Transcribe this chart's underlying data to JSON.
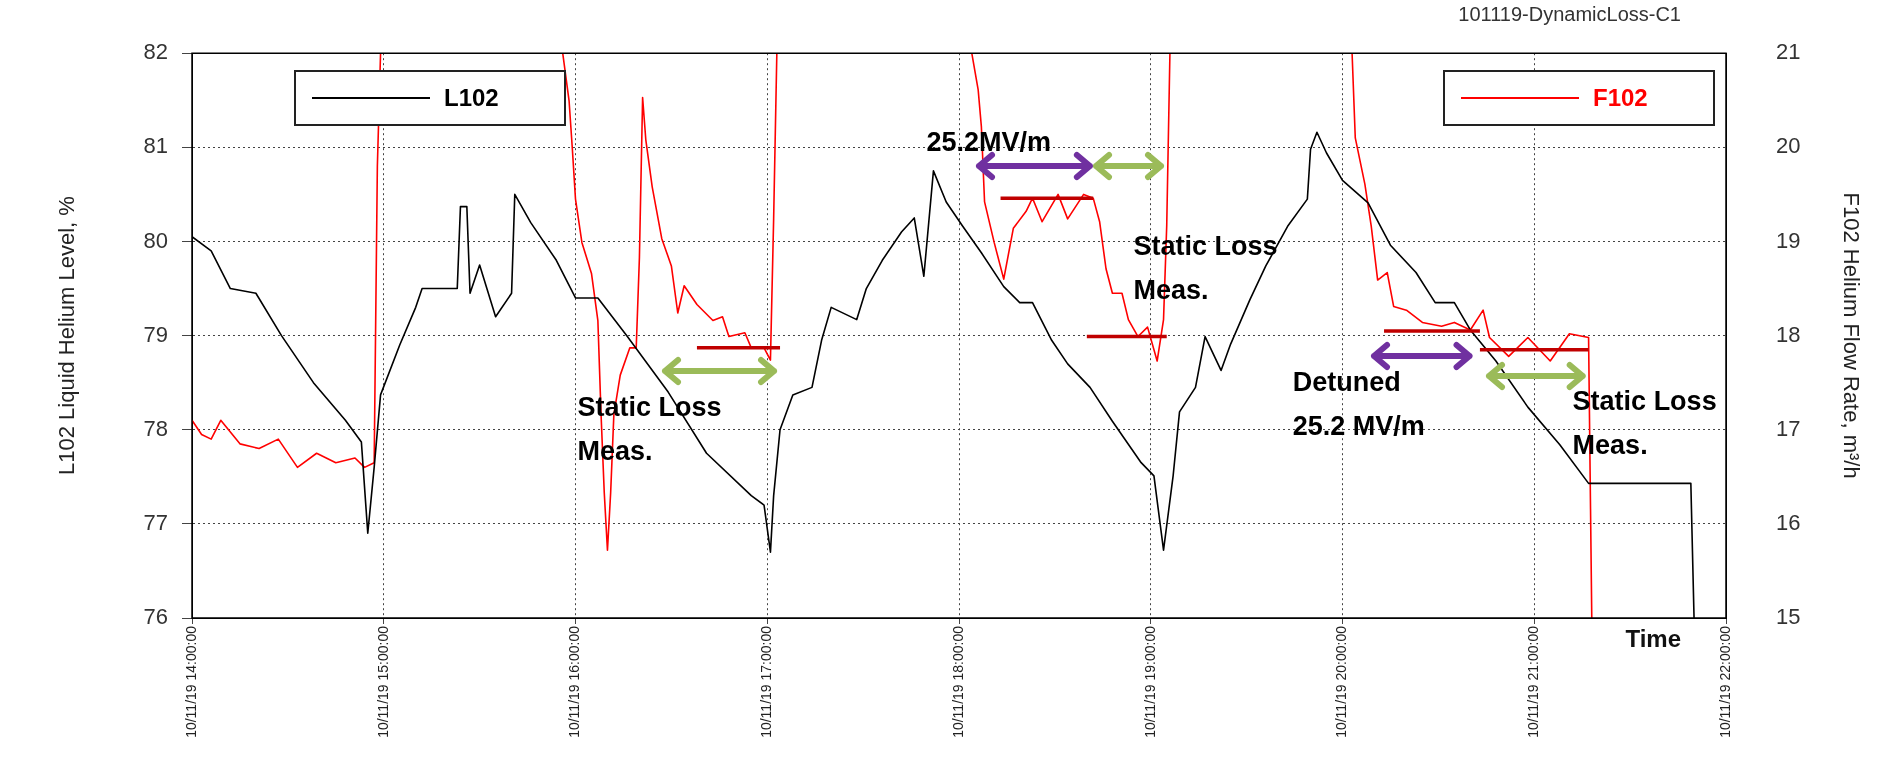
{
  "chart_data": {
    "type": "line",
    "title": "101119-DynamicLoss-C1",
    "xlabel": "Time",
    "ylabel": "L102 Liquid Helium Level, %",
    "y2label": "F102 Helium Flow Rate, m³/h",
    "xlim": [
      "--10-11T14:00",
      "--10-11T22:00"
    ],
    "xticks": [
      {
        "value": "--10-11T14:00",
        "label": "10/11/19 14:00:00"
      },
      {
        "value": "--10-11T15:00",
        "label": "10/11/19 15:00:00"
      },
      {
        "value": "--10-11T16:00",
        "label": "10/11/19 16:00:00"
      },
      {
        "value": "--10-11T17:00",
        "label": "10/11/19 17:00:00"
      },
      {
        "value": "--10-11T18:00",
        "label": "10/11/19 18:00:00"
      },
      {
        "value": "--10-11T19:00",
        "label": "10/11/19 19:00:00"
      },
      {
        "value": "--10-11T20:00",
        "label": "10/11/19 20:00:00"
      },
      {
        "value": "--10-11T21:00",
        "label": "10/11/19 21:00:00"
      },
      {
        "value": "--10-11T22:00",
        "label": "10/11/19 22:00:00"
      }
    ],
    "ylim": [
      76,
      82
    ],
    "yticks": [
      76,
      77,
      78,
      79,
      80,
      81,
      82
    ],
    "y2lim": [
      15,
      21
    ],
    "y2ticks": [
      15,
      16,
      17,
      18,
      19,
      20,
      21
    ],
    "grid": true,
    "legend": "top",
    "line_style": "solid",
    "marker": "none",
    "series": [
      {
        "name": "L102",
        "color": "#000000",
        "x": [
          "--10-11T14:00",
          "--10-11T14:06",
          "--10-11T14:12",
          "--10-11T14:20",
          "--10-11T14:28",
          "--10-11T14:38",
          "--10-11T14:48",
          "--10-11T14:53",
          "--10-11T14:55",
          "--10-11T14:57",
          "--10-11T14:59",
          "--10-11T15:05",
          "--10-11T15:10",
          "--10-11T15:12",
          "--10-11T15:23",
          "--10-11T15:24",
          "--10-11T15:26",
          "--10-11T15:27",
          "--10-11T15:30",
          "--10-11T15:35",
          "--10-11T15:40",
          "--10-11T15:41",
          "--10-11T15:46",
          "--10-11T15:54",
          "--10-11T16:00",
          "--10-11T16:07",
          "--10-11T16:16",
          "--10-11T16:29",
          "--10-11T16:41",
          "--10-11T16:55",
          "--10-11T16:59",
          "--10-11T17:01",
          "--10-11T17:02",
          "--10-11T17:04",
          "--10-11T17:08",
          "--10-11T17:14",
          "--10-11T17:17",
          "--10-11T17:20",
          "--10-11T17:28",
          "--10-11T17:31",
          "--10-11T17:36",
          "--10-11T17:42",
          "--10-11T17:46",
          "--10-11T17:49",
          "--10-11T17:52",
          "--10-11T17:56",
          "--10-11T18:01",
          "--10-11T18:07",
          "--10-11T18:14",
          "--10-11T18:19",
          "--10-11T18:23",
          "--10-11T18:29",
          "--10-11T18:34",
          "--10-11T18:41",
          "--10-11T18:48",
          "--10-11T18:57",
          "--10-11T19:01",
          "--10-11T19:04",
          "--10-11T19:07",
          "--10-11T19:09",
          "--10-11T19:14",
          "--10-11T19:17",
          "--10-11T19:22",
          "--10-11T19:25",
          "--10-11T19:31",
          "--10-11T19:36",
          "--10-11T19:43",
          "--10-11T19:49",
          "--10-11T19:50",
          "--10-11T19:52",
          "--10-11T19:55",
          "--10-11T20:00",
          "--10-11T20:08",
          "--10-11T20:15",
          "--10-11T20:23",
          "--10-11T20:29",
          "--10-11T20:35",
          "--10-11T20:40",
          "--10-11T20:48",
          "--10-11T20:58",
          "--10-11T21:08",
          "--10-11T21:17",
          "--10-11T21:49",
          "--10-11T21:50"
        ],
        "values": [
          80.05,
          79.9,
          79.5,
          79.45,
          79.0,
          78.5,
          78.1,
          77.87,
          76.9,
          77.6,
          78.37,
          78.9,
          79.3,
          79.5,
          79.5,
          80.37,
          80.37,
          79.45,
          79.75,
          79.2,
          79.45,
          80.5,
          80.2,
          79.8,
          79.4,
          79.4,
          79.0,
          78.4,
          77.75,
          77.3,
          77.2,
          76.7,
          77.3,
          78.0,
          78.37,
          78.45,
          78.95,
          79.3,
          79.17,
          79.5,
          79.8,
          80.1,
          80.25,
          79.63,
          80.75,
          80.42,
          80.17,
          79.88,
          79.52,
          79.35,
          79.35,
          78.95,
          78.7,
          78.45,
          78.09,
          77.65,
          77.51,
          76.72,
          77.51,
          78.19,
          78.45,
          78.99,
          78.63,
          78.91,
          79.38,
          79.74,
          80.17,
          80.45,
          80.98,
          81.16,
          80.94,
          80.65,
          80.41,
          79.96,
          79.67,
          79.35,
          79.35,
          79.06,
          78.73,
          78.24,
          77.84,
          77.43,
          77.43,
          76.0
        ]
      },
      {
        "name": "F102",
        "color": "#ff0000",
        "axis": "y2",
        "x": [
          "--10-11T14:00",
          "--10-11T14:03",
          "--10-11T14:06",
          "--10-11T14:09",
          "--10-11T14:15",
          "--10-11T14:21",
          "--10-11T14:27",
          "--10-11T14:33",
          "--10-11T14:39",
          "--10-11T14:45",
          "--10-11T14:51",
          "--10-11T14:54",
          "--10-11T14:57",
          "--10-11T14:58",
          "--10-11T14:59",
          "--10-11T15:30",
          "--10-11T15:56",
          "--10-11T15:58",
          "--10-11T15:59",
          "--10-11T16:00",
          "--10-11T16:02",
          "--10-11T16:05",
          "--10-11T16:07",
          "--10-11T16:08",
          "--10-11T16:09",
          "--10-11T16:10",
          "--10-11T16:11",
          "--10-11T16:12",
          "--10-11T16:14",
          "--10-11T16:17",
          "--10-11T16:19",
          "--10-11T16:20",
          "--10-11T16:21",
          "--10-11T16:22",
          "--10-11T16:24",
          "--10-11T16:27",
          "--10-11T16:30",
          "--10-11T16:32",
          "--10-11T16:34",
          "--10-11T16:38",
          "--10-11T16:43",
          "--10-11T16:46",
          "--10-11T16:48",
          "--10-11T16:53",
          "--10-11T16:55",
          "--10-11T16:59",
          "--10-11T17:01",
          "--10-11T17:02",
          "--10-11T17:03",
          "--10-11T17:30",
          "--10-11T18:04",
          "--10-11T18:06",
          "--10-11T18:07",
          "--10-11T18:08",
          "--10-11T18:11",
          "--10-11T18:14",
          "--10-11T18:17",
          "--10-11T18:21",
          "--10-11T18:23",
          "--10-11T18:26",
          "--10-11T18:31",
          "--10-11T18:34",
          "--10-11T18:39",
          "--10-11T18:42",
          "--10-11T18:44",
          "--10-11T18:46",
          "--10-11T18:48",
          "--10-11T18:51",
          "--10-11T18:53",
          "--10-11T18:56",
          "--10-11T18:59",
          "--10-11T19:02",
          "--10-11T19:04",
          "--10-11T19:05",
          "--10-11T19:06",
          "--10-11T19:30",
          "--10-11T20:03",
          "--10-11T20:04",
          "--10-11T20:07",
          "--10-11T20:09",
          "--10-11T20:11",
          "--10-11T20:14",
          "--10-11T20:16",
          "--10-11T20:20",
          "--10-11T20:25",
          "--10-11T20:31",
          "--10-11T20:35",
          "--10-11T20:40",
          "--10-11T20:44",
          "--10-11T20:46",
          "--10-11T20:52",
          "--10-11T20:58",
          "--10-11T21:05",
          "--10-11T21:11",
          "--10-11T21:17",
          "--10-11T21:18"
        ],
        "values": [
          17.1,
          16.95,
          16.9,
          17.1,
          16.85,
          16.8,
          16.9,
          16.6,
          16.75,
          16.65,
          16.7,
          16.6,
          16.65,
          19.8,
          21,
          null,
          21,
          20.49,
          19.99,
          19.45,
          18.99,
          18.66,
          18.16,
          17.16,
          16.33,
          15.72,
          16.33,
          17.16,
          17.58,
          17.87,
          17.87,
          18.83,
          20.53,
          20.08,
          19.58,
          19.03,
          18.74,
          18.24,
          18.53,
          18.33,
          18.16,
          18.2,
          17.99,
          18.03,
          17.87,
          17.87,
          17.74,
          19.24,
          21,
          null,
          21,
          20.61,
          20.22,
          19.42,
          18.99,
          18.6,
          19.14,
          19.32,
          19.46,
          19.21,
          19.5,
          19.24,
          19.5,
          19.46,
          19.21,
          18.71,
          18.45,
          18.45,
          18.17,
          17.99,
          18.09,
          17.73,
          18.17,
          19.17,
          21,
          null,
          21,
          20.1,
          19.61,
          19.16,
          18.59,
          18.67,
          18.31,
          18.27,
          18.14,
          18.1,
          18.14,
          18.06,
          18.27,
          17.98,
          17.78,
          17.98,
          17.73,
          18.02,
          17.98,
          15
        ]
      },
      {
        "type": "line",
        "color": "#c00000",
        "axis": "y2",
        "x": [
          "--10-11T16:38",
          "--10-11T17:04"
        ],
        "values": [
          17.87,
          17.87
        ]
      },
      {
        "type": "line",
        "color": "#c00000",
        "axis": "y2",
        "x": [
          "--10-11T18:13",
          "--10-11T18:42"
        ],
        "values": [
          19.46,
          19.46
        ]
      },
      {
        "type": "line",
        "color": "#c00000",
        "axis": "y2",
        "x": [
          "--10-11T18:40",
          "--10-11T19:05"
        ],
        "values": [
          17.99,
          17.99
        ]
      },
      {
        "type": "line",
        "color": "#c00000",
        "axis": "y2",
        "x": [
          "--10-11T20:13",
          "--10-11T20:43"
        ],
        "values": [
          18.05,
          18.05
        ]
      },
      {
        "type": "line",
        "color": "#c00000",
        "axis": "y2",
        "x": [
          "--10-11T20:43",
          "--10-11T21:17"
        ],
        "values": [
          17.85,
          17.85
        ]
      }
    ],
    "annotations": [
      "Static Loss\nMeas.",
      "25.2MV/m",
      "Static Loss\nMeas.",
      "Detuned\n25.2 MV/m",
      "Static Loss\nMeas."
    ]
  }
}
